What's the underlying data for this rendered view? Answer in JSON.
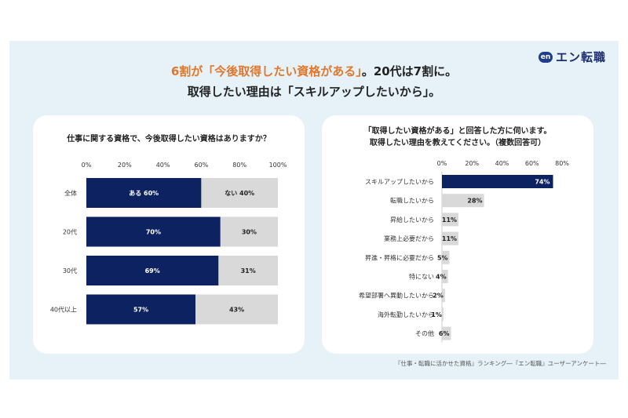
{
  "headline": {
    "line1_accent": "6割が「今後取得したい資格がある」",
    "line1_rest": "。20代は7割に。",
    "line2": "取得したい理由は「スキルアップしたいから」。"
  },
  "logo": {
    "badge": "en",
    "text": "エン転職"
  },
  "colors": {
    "navy": "#0d2260",
    "gray": "#d9d9d9",
    "accent": "#e0772a",
    "panel_bg": "#e6f2f8"
  },
  "source": "『仕事・転職に活かせた資格』ランキング―『エン転職』ユーザーアンケート―",
  "chart_data": [
    {
      "type": "bar",
      "stacked": true,
      "orientation": "horizontal",
      "title": "仕事に関する資格で、今後取得したい資格はありますか？",
      "categories": [
        "全体",
        "20代",
        "30代",
        "40代以上"
      ],
      "series": [
        {
          "name": "ある",
          "values": [
            60,
            70,
            69,
            57
          ],
          "labels": [
            "ある 60%",
            "70%",
            "69%",
            "57%"
          ]
        },
        {
          "name": "ない",
          "values": [
            40,
            30,
            31,
            43
          ],
          "labels": [
            "ない 40%",
            "30%",
            "31%",
            "43%"
          ]
        }
      ],
      "xlim": [
        0,
        100
      ],
      "x_ticks": [
        "0%",
        "20%",
        "40%",
        "60%",
        "80%",
        "100%"
      ]
    },
    {
      "type": "bar",
      "orientation": "horizontal",
      "title_lines": [
        "「取得したい資格がある」と回答した方に伺います。",
        "取得したい理由を教えてください。（複数回答可）"
      ],
      "categories": [
        "スキルアップしたいから",
        "転職したいから",
        "昇給したいから",
        "業務上必要だから",
        "昇進・昇格に必要だから",
        "特にない",
        "希望部署へ異動したいから",
        "海外転勤したいから",
        "その他"
      ],
      "values": [
        74,
        28,
        11,
        11,
        5,
        4,
        2,
        1,
        6
      ],
      "labels": [
        "74%",
        "28%",
        "11%",
        "11%",
        "5%",
        "4%",
        "2%",
        "1%",
        "6%"
      ],
      "xlim": [
        0,
        80
      ],
      "x_ticks": [
        "0%",
        "20%",
        "40%",
        "60%",
        "80%"
      ]
    }
  ]
}
